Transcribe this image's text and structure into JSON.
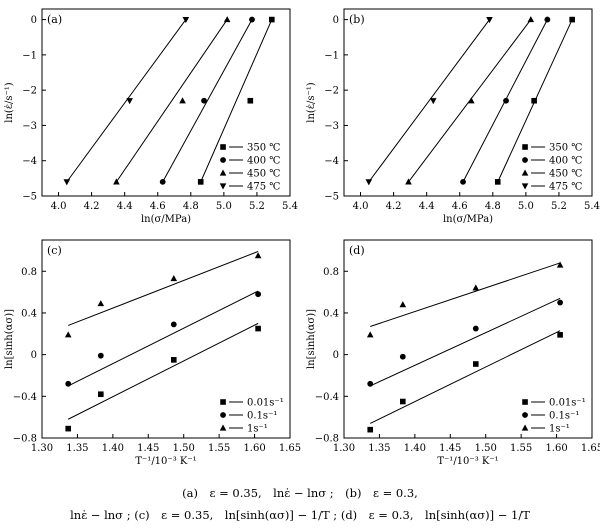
{
  "chart_data": [
    {
      "type": "scatter",
      "panel_label": "(a)",
      "xlabel": "ln(σ/MPa)",
      "ylabel": "ln(ε̇/s⁻¹)",
      "xlim": [
        3.9,
        5.4
      ],
      "ylim": [
        -5,
        0.3
      ],
      "xticks": [
        "4.0",
        "4.2",
        "4.4",
        "4.6",
        "4.8",
        "5.0",
        "5.2",
        "5.4"
      ],
      "yticks": [
        "0",
        "−1",
        "−2",
        "−3",
        "−4",
        "−5"
      ],
      "legend_position": "lower-right",
      "series": [
        {
          "name": "350 ℃",
          "marker": "square",
          "x": [
            5.29,
            5.16,
            4.86
          ],
          "y": [
            0,
            -2.3,
            -4.6
          ],
          "fit": [
            [
              5.29,
              0
            ],
            [
              4.86,
              -4.6
            ]
          ]
        },
        {
          "name": "400 ℃",
          "marker": "circle",
          "x": [
            5.17,
            4.88,
            4.63
          ],
          "y": [
            0,
            -2.3,
            -4.6
          ],
          "fit": [
            [
              5.17,
              0
            ],
            [
              4.63,
              -4.6
            ]
          ]
        },
        {
          "name": "450 ℃",
          "marker": "triangle-up",
          "x": [
            5.02,
            4.75,
            4.35
          ],
          "y": [
            0,
            -2.3,
            -4.6
          ],
          "fit": [
            [
              5.02,
              0
            ],
            [
              4.35,
              -4.6
            ]
          ]
        },
        {
          "name": "475 ℃",
          "marker": "triangle-down",
          "x": [
            4.77,
            4.43,
            4.05
          ],
          "y": [
            0,
            -2.3,
            -4.6
          ],
          "fit": [
            [
              4.77,
              0
            ],
            [
              4.05,
              -4.6
            ]
          ]
        }
      ]
    },
    {
      "type": "scatter",
      "panel_label": "(b)",
      "xlabel": "ln(σ/MPa)",
      "ylabel": "ln(ε̇/s⁻¹)",
      "xlim": [
        3.9,
        5.4
      ],
      "ylim": [
        -5,
        0.3
      ],
      "xticks": [
        "4.0",
        "4.2",
        "4.4",
        "4.6",
        "4.8",
        "5.0",
        "5.2",
        "5.4"
      ],
      "yticks": [
        "0",
        "−1",
        "−2",
        "−3",
        "−4",
        "−5"
      ],
      "legend_position": "lower-right",
      "series": [
        {
          "name": "350 ℃",
          "marker": "square",
          "x": [
            5.28,
            5.05,
            4.83
          ],
          "y": [
            0,
            -2.3,
            -4.6
          ],
          "fit": [
            [
              5.28,
              0
            ],
            [
              4.83,
              -4.6
            ]
          ]
        },
        {
          "name": "400 ℃",
          "marker": "circle",
          "x": [
            5.13,
            4.88,
            4.62
          ],
          "y": [
            0,
            -2.3,
            -4.6
          ],
          "fit": [
            [
              5.13,
              0
            ],
            [
              4.62,
              -4.6
            ]
          ]
        },
        {
          "name": "450 ℃",
          "marker": "triangle-up",
          "x": [
            5.03,
            4.67,
            4.29
          ],
          "y": [
            0,
            -2.3,
            -4.6
          ],
          "fit": [
            [
              5.03,
              0
            ],
            [
              4.29,
              -4.6
            ]
          ]
        },
        {
          "name": "475 ℃",
          "marker": "triangle-down",
          "x": [
            4.78,
            4.44,
            4.05
          ],
          "y": [
            0,
            -2.3,
            -4.6
          ],
          "fit": [
            [
              4.78,
              0
            ],
            [
              4.05,
              -4.6
            ]
          ]
        }
      ]
    },
    {
      "type": "scatter",
      "panel_label": "(c)",
      "xlabel": "T⁻¹/10⁻³ K⁻¹",
      "ylabel": "ln[sinh(ασ)]",
      "xlim": [
        1.3,
        1.65
      ],
      "ylim": [
        -0.8,
        1.1
      ],
      "xticks": [
        "1.30",
        "1.35",
        "1.40",
        "1.45",
        "1.50",
        "1.55",
        "1.60",
        "1.65"
      ],
      "yticks": [
        "0.8",
        "0.4",
        "0",
        "−0.4",
        "−0.8"
      ],
      "legend_position": "lower-right",
      "series": [
        {
          "name": "0.01s⁻¹",
          "marker": "square",
          "x": [
            1.337,
            1.383,
            1.486,
            1.605
          ],
          "y": [
            -0.71,
            -0.38,
            -0.05,
            0.25
          ],
          "fit": [
            [
              1.337,
              -0.62
            ],
            [
              1.605,
              0.3
            ]
          ]
        },
        {
          "name": "0.1s⁻¹",
          "marker": "circle",
          "x": [
            1.337,
            1.383,
            1.486,
            1.605
          ],
          "y": [
            -0.28,
            -0.01,
            0.29,
            0.58
          ],
          "fit": [
            [
              1.337,
              -0.3
            ],
            [
              1.605,
              0.61
            ]
          ]
        },
        {
          "name": "1s⁻¹",
          "marker": "triangle-up",
          "x": [
            1.337,
            1.383,
            1.486,
            1.605
          ],
          "y": [
            0.19,
            0.49,
            0.73,
            0.95
          ],
          "fit": [
            [
              1.337,
              0.28
            ],
            [
              1.605,
              0.99
            ]
          ]
        }
      ]
    },
    {
      "type": "scatter",
      "panel_label": "(d)",
      "xlabel": "T⁻¹/10⁻³ K⁻¹",
      "ylabel": "ln[sinh(ασ)]",
      "xlim": [
        1.3,
        1.65
      ],
      "ylim": [
        -0.8,
        1.1
      ],
      "xticks": [
        "1.30",
        "1.35",
        "1.40",
        "1.45",
        "1.50",
        "1.55",
        "1.60",
        "1.65"
      ],
      "yticks": [
        "0.8",
        "0.4",
        "0",
        "−0.4",
        "−0.8"
      ],
      "legend_position": "lower-right",
      "series": [
        {
          "name": "0.01s⁻¹",
          "marker": "square",
          "x": [
            1.337,
            1.383,
            1.486,
            1.605
          ],
          "y": [
            -0.72,
            -0.45,
            -0.09,
            0.19
          ],
          "fit": [
            [
              1.337,
              -0.66
            ],
            [
              1.605,
              0.23
            ]
          ]
        },
        {
          "name": "0.1s⁻¹",
          "marker": "circle",
          "x": [
            1.337,
            1.383,
            1.486,
            1.605
          ],
          "y": [
            -0.28,
            -0.02,
            0.25,
            0.5
          ],
          "fit": [
            [
              1.337,
              -0.3
            ],
            [
              1.605,
              0.54
            ]
          ]
        },
        {
          "name": "1s⁻¹",
          "marker": "triangle-up",
          "x": [
            1.337,
            1.383,
            1.486,
            1.605
          ],
          "y": [
            0.19,
            0.48,
            0.64,
            0.86
          ],
          "fit": [
            [
              1.337,
              0.27
            ],
            [
              1.605,
              0.88
            ]
          ]
        }
      ]
    }
  ],
  "caption": {
    "line1": "(a) ε = 0.35, lnε̇ − lnσ ; (b) ε = 0.3,",
    "line2": "lnε̇ − lnσ ; (c) ε = 0.35, ln[sinh(ασ)] − 1/T ; (d) ε = 0.3, ln[sinh(ασ)] − 1/T"
  }
}
